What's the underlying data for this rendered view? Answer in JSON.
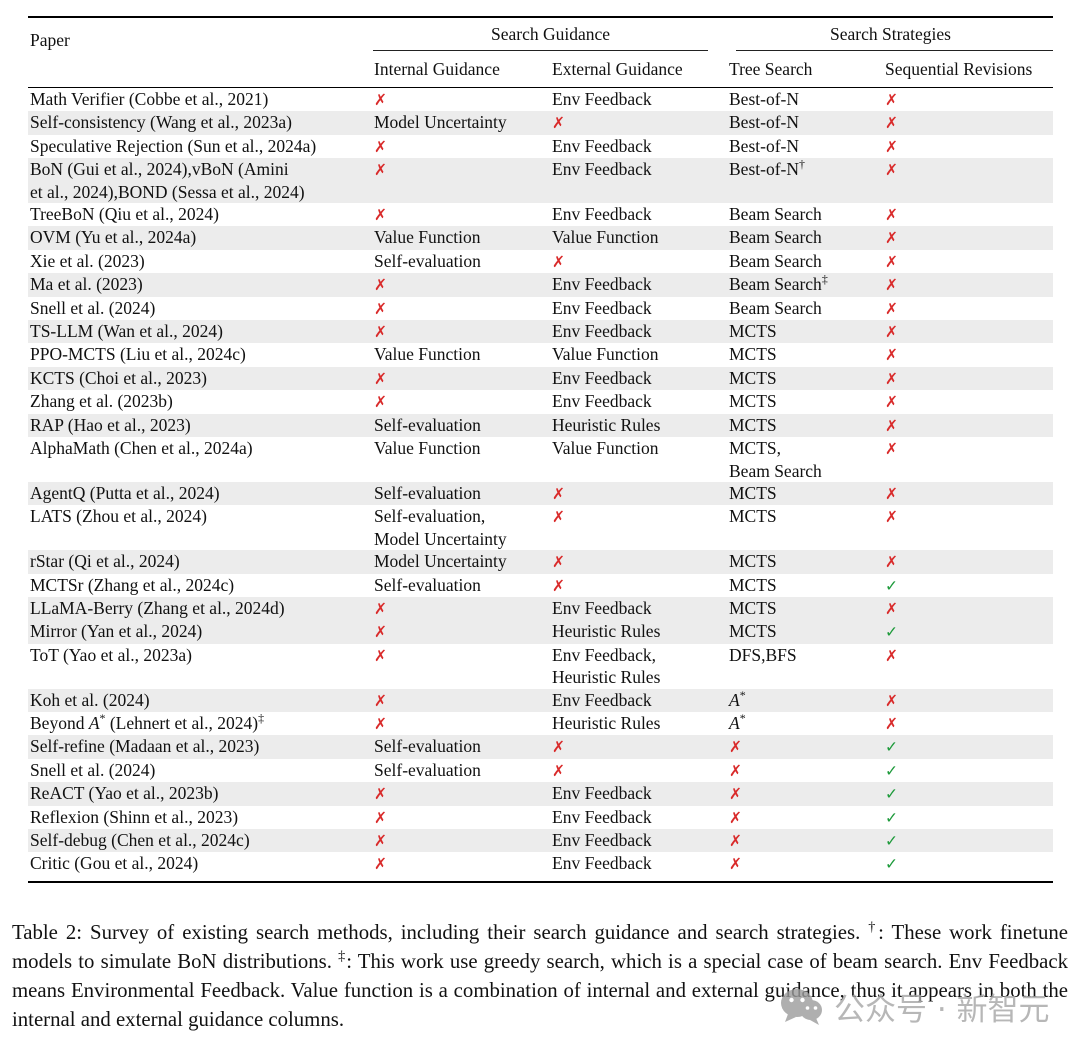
{
  "table": {
    "header": {
      "paper": "Paper",
      "group1": "Search Guidance",
      "group2": "Search Strategies",
      "internal": "Internal Guidance",
      "external": "External Guidance",
      "tree": "Tree Search",
      "seq": "Sequential Revisions"
    },
    "markers": {
      "cross": "✗",
      "check": "✓"
    },
    "colors": {
      "cross": "#d92b2b",
      "check": "#1f9b3c",
      "stripe": "#ececec",
      "text": "#111111"
    },
    "rows": [
      {
        "paper": "Math Verifier (Cobbe et al., 2021)",
        "internal": "✗",
        "external": "Env Feedback",
        "tree": "Best-of-N",
        "seq": "✗",
        "shaded": false
      },
      {
        "paper": "Self-consistency (Wang et al., 2023a)",
        "internal": "Model Uncertainty",
        "external": "✗",
        "tree": "Best-of-N",
        "seq": "✗",
        "shaded": true
      },
      {
        "paper": "Speculative Rejection (Sun et al., 2024a)",
        "internal": "✗",
        "external": "Env Feedback",
        "tree": "Best-of-N",
        "seq": "✗",
        "shaded": false
      },
      {
        "paper": "BoN (Gui et al., 2024),vBoN (Amini\net al., 2024),BOND (Sessa et al., 2024)",
        "internal": "✗",
        "external": "Env Feedback",
        "tree": [
          {
            "t": "Best-of-N"
          },
          {
            "t": "†",
            "sup": true
          }
        ],
        "seq": "✗",
        "shaded": true
      },
      {
        "paper": "TreeBoN (Qiu et al., 2024)",
        "internal": "✗",
        "external": "Env Feedback",
        "tree": "Beam Search",
        "seq": "✗",
        "shaded": false
      },
      {
        "paper": "OVM (Yu et al., 2024a)",
        "internal": "Value Function",
        "external": "Value Function",
        "tree": "Beam Search",
        "seq": "✗",
        "shaded": true
      },
      {
        "paper": "Xie et al. (2023)",
        "internal": "Self-evaluation",
        "external": "✗",
        "tree": "Beam Search",
        "seq": "✗",
        "shaded": false
      },
      {
        "paper": "Ma et al. (2023)",
        "internal": "✗",
        "external": "Env Feedback",
        "tree": [
          {
            "t": "Beam Search"
          },
          {
            "t": "‡",
            "sup": true
          }
        ],
        "seq": "✗",
        "shaded": true
      },
      {
        "paper": "Snell et al. (2024)",
        "internal": "✗",
        "external": "Env Feedback",
        "tree": "Beam Search",
        "seq": "✗",
        "shaded": false
      },
      {
        "paper": "TS-LLM (Wan et al., 2024)",
        "internal": "✗",
        "external": "Env Feedback",
        "tree": "MCTS",
        "seq": "✗",
        "shaded": true
      },
      {
        "paper": "PPO-MCTS (Liu et al., 2024c)",
        "internal": "Value Function",
        "external": "Value Function",
        "tree": "MCTS",
        "seq": "✗",
        "shaded": false
      },
      {
        "paper": "KCTS (Choi et al., 2023)",
        "internal": "✗",
        "external": "Env Feedback",
        "tree": "MCTS",
        "seq": "✗",
        "shaded": true
      },
      {
        "paper": "Zhang et al. (2023b)",
        "internal": "✗",
        "external": "Env Feedback",
        "tree": "MCTS",
        "seq": "✗",
        "shaded": false
      },
      {
        "paper": "RAP (Hao et al., 2023)",
        "internal": "Self-evaluation",
        "external": "Heuristic Rules",
        "tree": "MCTS",
        "seq": "✗",
        "shaded": true
      },
      {
        "paper": "AlphaMath (Chen et al., 2024a)",
        "internal": "Value Function",
        "external": "Value Function",
        "tree": "MCTS,\nBeam Search",
        "seq": "✗",
        "shaded": false
      },
      {
        "paper": "AgentQ (Putta et al., 2024)",
        "internal": "Self-evaluation",
        "external": "✗",
        "tree": "MCTS",
        "seq": "✗",
        "shaded": true
      },
      {
        "paper": "LATS (Zhou et al., 2024)",
        "internal": "Self-evaluation,\nModel Uncertainty",
        "external": "✗",
        "tree": "MCTS",
        "seq": "✗",
        "shaded": false
      },
      {
        "paper": "rStar (Qi et al., 2024)",
        "internal": "Model Uncertainty",
        "external": "✗",
        "tree": "MCTS",
        "seq": "✗",
        "shaded": true
      },
      {
        "paper": "MCTSr (Zhang et al., 2024c)",
        "internal": "Self-evaluation",
        "external": "✗",
        "tree": "MCTS",
        "seq": "✓",
        "shaded": false
      },
      {
        "paper": "LLaMA-Berry (Zhang et al., 2024d)",
        "internal": "✗",
        "external": "Env Feedback",
        "tree": "MCTS",
        "seq": "✗",
        "shaded": true
      },
      {
        "paper": "Mirror (Yan et al., 2024)",
        "internal": "✗",
        "external": "Heuristic Rules",
        "tree": "MCTS",
        "seq": "✓",
        "shaded": true
      },
      {
        "paper": "ToT (Yao et al., 2023a)",
        "internal": "✗",
        "external": "Env Feedback,\nHeuristic Rules",
        "tree": "DFS,BFS",
        "seq": "✗",
        "shaded": false
      },
      {
        "paper": "Koh et al. (2024)",
        "internal": "✗",
        "external": "Env Feedback",
        "tree": [
          {
            "t": "A",
            "i": true
          },
          {
            "t": "*",
            "sup": true
          }
        ],
        "seq": "✗",
        "shaded": true
      },
      {
        "paper": [
          {
            "t": "Beyond "
          },
          {
            "t": "A",
            "i": true
          },
          {
            "t": "*",
            "sup": true
          },
          {
            "t": " (Lehnert et al., 2024)"
          },
          {
            "t": "‡",
            "sup": true
          }
        ],
        "internal": "✗",
        "external": "Heuristic Rules",
        "tree": [
          {
            "t": "A",
            "i": true
          },
          {
            "t": "*",
            "sup": true
          }
        ],
        "seq": "✗",
        "shaded": false
      },
      {
        "paper": "Self-refine (Madaan et al., 2023)",
        "internal": "Self-evaluation",
        "external": "✗",
        "tree": "✗",
        "seq": "✓",
        "shaded": true
      },
      {
        "paper": "Snell et al. (2024)",
        "internal": "Self-evaluation",
        "external": "✗",
        "tree": "✗",
        "seq": "✓",
        "shaded": false
      },
      {
        "paper": "ReACT (Yao et al., 2023b)",
        "internal": "✗",
        "external": "Env Feedback",
        "tree": "✗",
        "seq": "✓",
        "shaded": true
      },
      {
        "paper": "Reflexion (Shinn et al., 2023)",
        "internal": "✗",
        "external": "Env Feedback",
        "tree": "✗",
        "seq": "✓",
        "shaded": false
      },
      {
        "paper": "Self-debug (Chen et al., 2024c)",
        "internal": "✗",
        "external": "Env Feedback",
        "tree": "✗",
        "seq": "✓",
        "shaded": true
      },
      {
        "paper": "Critic (Gou et al., 2024)",
        "internal": "✗",
        "external": "Env Feedback",
        "tree": "✗",
        "seq": "✓",
        "shaded": false
      }
    ]
  },
  "caption": {
    "segments": [
      {
        "t": "Table 2: Survey of existing search methods, including their search guidance and search strategies. "
      },
      {
        "t": "†",
        "sup": true
      },
      {
        "t": ": These work finetune models to simulate BoN distributions. "
      },
      {
        "t": "‡",
        "sup": true
      },
      {
        "t": ": This work use greedy search, which is a special case of beam search. Env Feedback means Environmental Feedback. Value function is a combination of internal and external guidance, thus it appears in both the internal and external guidance columns."
      }
    ]
  },
  "watermark": {
    "text": "公众号 · 新智元"
  }
}
